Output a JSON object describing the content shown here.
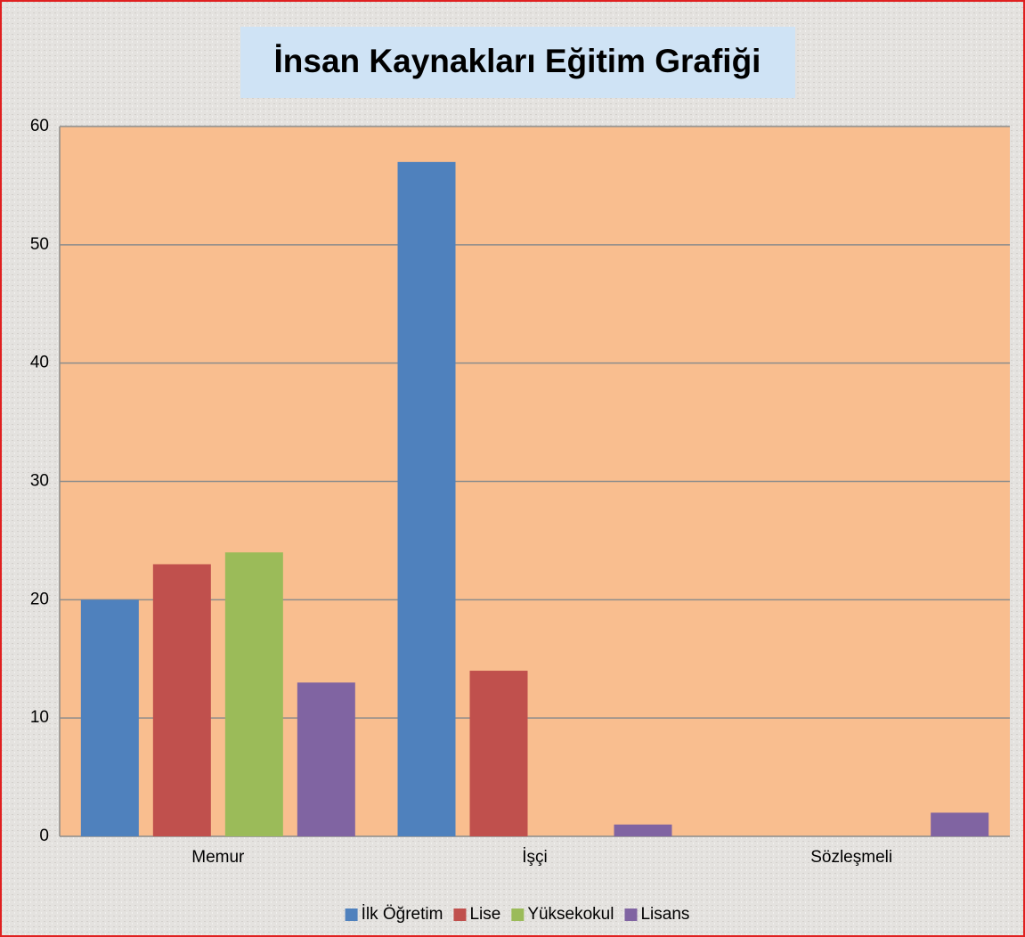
{
  "chart_data": {
    "type": "bar",
    "title": "İnsan Kaynakları Eğitim Grafiği",
    "categories": [
      "Memur",
      "İşçi",
      "Sözleşmeli"
    ],
    "series": [
      {
        "name": "İlk Öğretim",
        "color": "#4f81bd",
        "values": [
          20,
          57,
          0
        ]
      },
      {
        "name": "Lise",
        "color": "#c0504d",
        "values": [
          23,
          14,
          0
        ]
      },
      {
        "name": "Yüksekokul",
        "color": "#9bbb59",
        "values": [
          24,
          0,
          0
        ]
      },
      {
        "name": "Lisans",
        "color": "#8064a2",
        "values": [
          13,
          1,
          2
        ]
      }
    ],
    "ylim": [
      0,
      60
    ],
    "yticks": [
      0,
      10,
      20,
      30,
      40,
      50,
      60
    ],
    "grid": true,
    "legend": "bottom"
  }
}
